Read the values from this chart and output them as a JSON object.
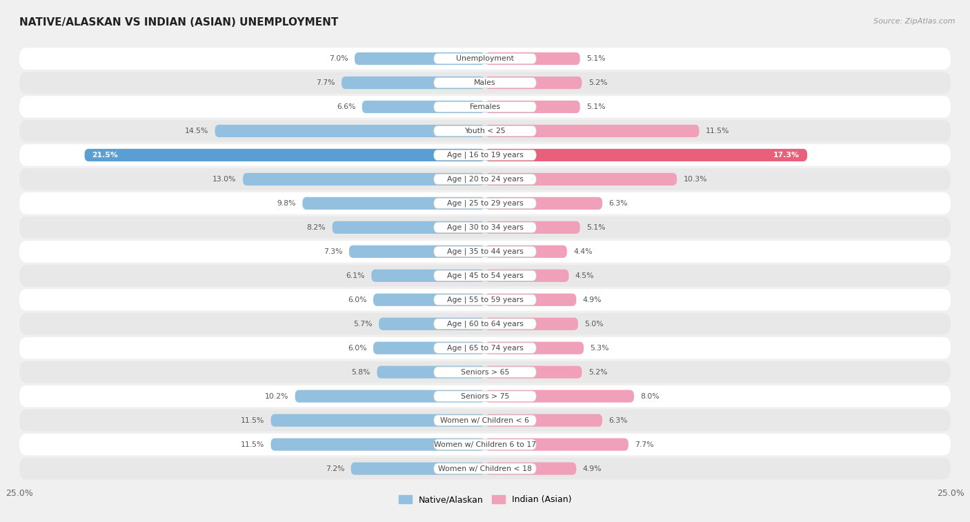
{
  "title": "NATIVE/ALASKAN VS INDIAN (ASIAN) UNEMPLOYMENT",
  "source": "Source: ZipAtlas.com",
  "categories": [
    "Unemployment",
    "Males",
    "Females",
    "Youth < 25",
    "Age | 16 to 19 years",
    "Age | 20 to 24 years",
    "Age | 25 to 29 years",
    "Age | 30 to 34 years",
    "Age | 35 to 44 years",
    "Age | 45 to 54 years",
    "Age | 55 to 59 years",
    "Age | 60 to 64 years",
    "Age | 65 to 74 years",
    "Seniors > 65",
    "Seniors > 75",
    "Women w/ Children < 6",
    "Women w/ Children 6 to 17",
    "Women w/ Children < 18"
  ],
  "native_values": [
    7.0,
    7.7,
    6.6,
    14.5,
    21.5,
    13.0,
    9.8,
    8.2,
    7.3,
    6.1,
    6.0,
    5.7,
    6.0,
    5.8,
    10.2,
    11.5,
    11.5,
    7.2
  ],
  "indian_values": [
    5.1,
    5.2,
    5.1,
    11.5,
    17.3,
    10.3,
    6.3,
    5.1,
    4.4,
    4.5,
    4.9,
    5.0,
    5.3,
    5.2,
    8.0,
    6.3,
    7.7,
    4.9
  ],
  "native_color": "#92c0de",
  "indian_color": "#f0a0b8",
  "native_color_highlight": "#5a9fd4",
  "indian_color_highlight": "#e8607a",
  "xlim": 25.0,
  "background_color": "#f0f0f0",
  "row_color_even": "#ffffff",
  "row_color_odd": "#e8e8e8",
  "pill_color": "#ffffff",
  "legend_native": "Native/Alaskan",
  "legend_indian": "Indian (Asian)"
}
